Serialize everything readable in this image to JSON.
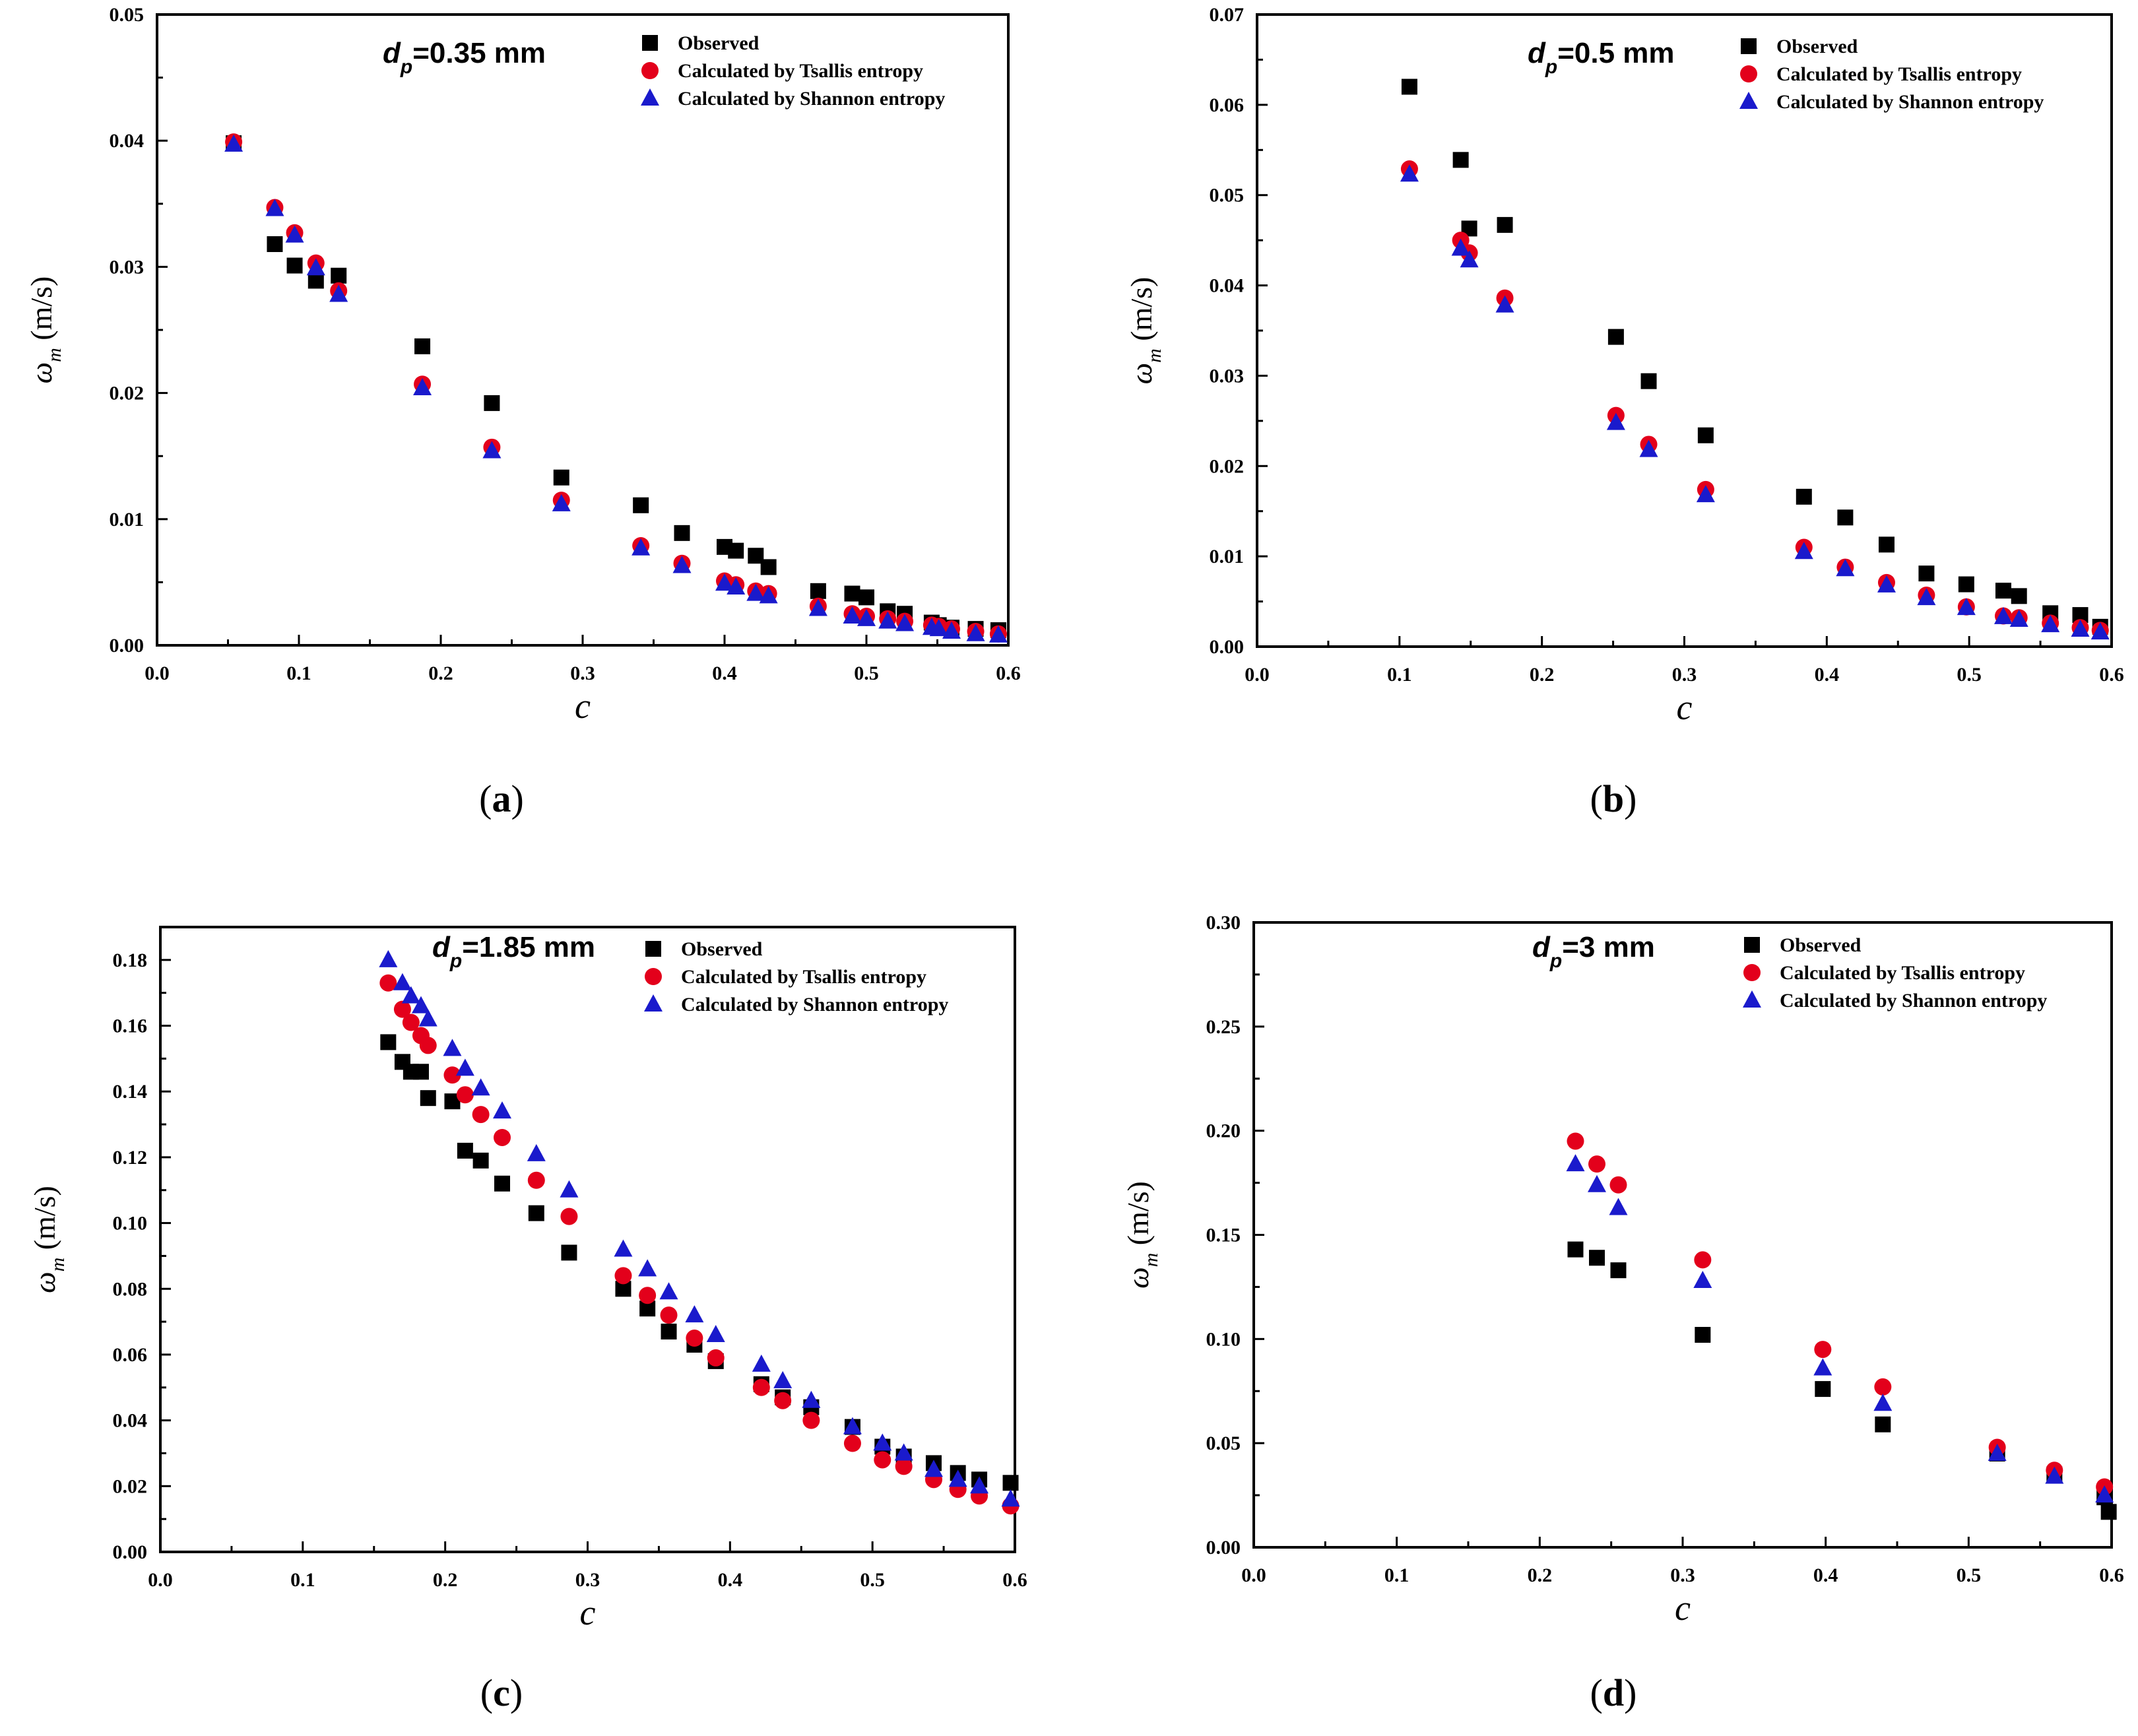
{
  "legend_labels": [
    "Observed",
    "Calculated by Tsallis entropy",
    "Calculated by  Shannon entropy"
  ],
  "series_colors": {
    "observed": "#000000",
    "tsallis": "#e3001b",
    "shannon": "#1a1acc"
  },
  "marker_shapes": {
    "observed": "square",
    "tsallis": "circle",
    "shannon": "triangle"
  },
  "chart_data": [
    {
      "type": "scatter",
      "panel_label": "a",
      "annotation": {
        "symbol": "d",
        "subscript": "p",
        "text": "=0.35 mm"
      },
      "xlabel": "c",
      "ylabel_symbol": "ω",
      "ylabel_subscript": "m",
      "ylabel_unit": "(m/s)",
      "xlim": [
        0,
        0.6
      ],
      "ylim": [
        0,
        0.05
      ],
      "xticks": [
        0.0,
        0.1,
        0.2,
        0.3,
        0.4,
        0.5,
        0.6
      ],
      "xtick_labels": [
        "0.0",
        "0.1",
        "0.2",
        "0.3",
        "0.4",
        "0.5",
        "0.6"
      ],
      "yticks": [
        0,
        0.01,
        0.02,
        0.03,
        0.04,
        0.05
      ],
      "ytick_labels": [
        "0.00",
        "0.01",
        "0.02",
        "0.03",
        "0.04",
        "0.05"
      ],
      "series": [
        {
          "name": "Observed",
          "key": "observed",
          "x": [
            0.054,
            0.083,
            0.097,
            0.112,
            0.128,
            0.187,
            0.236,
            0.285,
            0.341,
            0.37,
            0.4,
            0.408,
            0.422,
            0.431,
            0.466,
            0.49,
            0.5,
            0.515,
            0.527,
            0.546,
            0.551,
            0.56,
            0.577,
            0.593
          ],
          "y": [
            0.0398,
            0.0318,
            0.0301,
            0.0289,
            0.0293,
            0.0237,
            0.0192,
            0.0133,
            0.0111,
            0.0089,
            0.0078,
            0.0075,
            0.0071,
            0.0062,
            0.0043,
            0.0041,
            0.0038,
            0.0027,
            0.0025,
            0.0018,
            0.0016,
            0.0014,
            0.0013,
            0.0012
          ]
        },
        {
          "name": "Calculated by Tsallis entropy",
          "key": "tsallis",
          "x": [
            0.054,
            0.083,
            0.097,
            0.112,
            0.128,
            0.187,
            0.236,
            0.285,
            0.341,
            0.37,
            0.4,
            0.408,
            0.422,
            0.431,
            0.466,
            0.49,
            0.5,
            0.515,
            0.527,
            0.546,
            0.551,
            0.56,
            0.577,
            0.593
          ],
          "y": [
            0.0399,
            0.0347,
            0.0327,
            0.0303,
            0.0281,
            0.0207,
            0.0157,
            0.0115,
            0.0079,
            0.0065,
            0.0051,
            0.0048,
            0.0043,
            0.0041,
            0.0031,
            0.0025,
            0.0023,
            0.0021,
            0.0019,
            0.0016,
            0.0015,
            0.0013,
            0.0011,
            0.0009
          ]
        },
        {
          "name": "Calculated by  Shannon entropy",
          "key": "shannon",
          "x": [
            0.054,
            0.083,
            0.097,
            0.112,
            0.128,
            0.187,
            0.236,
            0.285,
            0.341,
            0.37,
            0.4,
            0.408,
            0.422,
            0.431,
            0.466,
            0.49,
            0.5,
            0.515,
            0.527,
            0.546,
            0.551,
            0.56,
            0.577,
            0.593
          ],
          "y": [
            0.0397,
            0.0346,
            0.0325,
            0.0299,
            0.0278,
            0.0204,
            0.0154,
            0.0112,
            0.0077,
            0.0063,
            0.0049,
            0.0046,
            0.0041,
            0.0039,
            0.0029,
            0.0023,
            0.0021,
            0.0019,
            0.0017,
            0.0014,
            0.0013,
            0.0011,
            0.0009,
            0.0008
          ]
        }
      ]
    },
    {
      "type": "scatter",
      "panel_label": "b",
      "annotation": {
        "symbol": "d",
        "subscript": "p",
        "text": "=0.5 mm"
      },
      "xlabel": "c",
      "ylabel_symbol": "ω",
      "ylabel_subscript": "m",
      "ylabel_unit": "(m/s)",
      "xlim": [
        0,
        0.6
      ],
      "ylim": [
        0,
        0.07
      ],
      "xticks": [
        0.0,
        0.1,
        0.2,
        0.3,
        0.4,
        0.5,
        0.6
      ],
      "xtick_labels": [
        "0.0",
        "0.1",
        "0.2",
        "0.3",
        "0.4",
        "0.5",
        "0.6"
      ],
      "yticks": [
        0,
        0.01,
        0.02,
        0.03,
        0.04,
        0.05,
        0.06,
        0.07
      ],
      "ytick_labels": [
        "0.00",
        "0.01",
        "0.02",
        "0.03",
        "0.04",
        "0.05",
        "0.06",
        "0.07"
      ],
      "series": [
        {
          "name": "Observed",
          "key": "observed",
          "x": [
            0.107,
            0.143,
            0.149,
            0.174,
            0.252,
            0.275,
            0.315,
            0.384,
            0.413,
            0.442,
            0.47,
            0.498,
            0.524,
            0.535,
            0.557,
            0.578,
            0.592
          ],
          "y": [
            0.062,
            0.0539,
            0.0463,
            0.0467,
            0.0343,
            0.0294,
            0.0234,
            0.0166,
            0.0143,
            0.0113,
            0.0081,
            0.0069,
            0.0062,
            0.0056,
            0.0037,
            0.0035,
            0.0022
          ]
        },
        {
          "name": "Calculated by Tsallis entropy",
          "key": "tsallis",
          "x": [
            0.107,
            0.143,
            0.149,
            0.174,
            0.252,
            0.275,
            0.315,
            0.384,
            0.413,
            0.442,
            0.47,
            0.498,
            0.524,
            0.535,
            0.557,
            0.578,
            0.592
          ],
          "y": [
            0.0529,
            0.045,
            0.0436,
            0.0386,
            0.0256,
            0.0224,
            0.0174,
            0.011,
            0.0088,
            0.0071,
            0.0057,
            0.0044,
            0.0034,
            0.0032,
            0.0026,
            0.0021,
            0.0018
          ]
        },
        {
          "name": "Calculated by  Shannon entropy",
          "key": "shannon",
          "x": [
            0.107,
            0.143,
            0.149,
            0.174,
            0.252,
            0.275,
            0.315,
            0.384,
            0.413,
            0.442,
            0.47,
            0.498,
            0.524,
            0.535,
            0.557,
            0.578,
            0.592
          ],
          "y": [
            0.0523,
            0.0441,
            0.0428,
            0.0378,
            0.0248,
            0.0218,
            0.0168,
            0.0105,
            0.0086,
            0.0068,
            0.0054,
            0.0043,
            0.0033,
            0.003,
            0.0024,
            0.0019,
            0.0016
          ]
        }
      ]
    },
    {
      "type": "scatter",
      "panel_label": "c",
      "annotation": {
        "symbol": "d",
        "subscript": "p",
        "text": "=1.85 mm"
      },
      "xlabel": "c",
      "ylabel_symbol": "ω",
      "ylabel_subscript": "m",
      "ylabel_unit": "(m/s)",
      "xlim": [
        0,
        0.6
      ],
      "ylim": [
        0,
        0.19
      ],
      "xticks": [
        0.0,
        0.1,
        0.2,
        0.3,
        0.4,
        0.5,
        0.6
      ],
      "xtick_labels": [
        "0.0",
        "0.1",
        "0.2",
        "0.3",
        "0.4",
        "0.5",
        "0.6"
      ],
      "yticks": [
        0,
        0.02,
        0.04,
        0.06,
        0.08,
        0.1,
        0.12,
        0.14,
        0.16,
        0.18
      ],
      "ytick_labels": [
        "0.00",
        "0.02",
        "0.04",
        "0.06",
        "0.08",
        "0.10",
        "0.12",
        "0.14",
        "0.16",
        "0.18"
      ],
      "series": [
        {
          "name": "Observed",
          "key": "observed",
          "x": [
            0.16,
            0.17,
            0.176,
            0.183,
            0.188,
            0.205,
            0.214,
            0.225,
            0.24,
            0.264,
            0.287,
            0.325,
            0.342,
            0.357,
            0.375,
            0.39,
            0.422,
            0.437,
            0.457,
            0.486,
            0.507,
            0.522,
            0.543,
            0.56,
            0.575,
            0.597
          ],
          "y": [
            0.155,
            0.149,
            0.146,
            0.146,
            0.138,
            0.137,
            0.122,
            0.119,
            0.112,
            0.103,
            0.091,
            0.08,
            0.074,
            0.067,
            0.063,
            0.058,
            0.051,
            0.047,
            0.044,
            0.038,
            0.032,
            0.029,
            0.027,
            0.024,
            0.022,
            0.021
          ]
        },
        {
          "name": "Calculated by Tsallis entropy",
          "key": "tsallis",
          "x": [
            0.16,
            0.17,
            0.176,
            0.183,
            0.188,
            0.205,
            0.214,
            0.225,
            0.24,
            0.264,
            0.287,
            0.325,
            0.342,
            0.357,
            0.375,
            0.39,
            0.422,
            0.437,
            0.457,
            0.486,
            0.507,
            0.522,
            0.543,
            0.56,
            0.575,
            0.597
          ],
          "y": [
            0.173,
            0.165,
            0.161,
            0.157,
            0.154,
            0.145,
            0.139,
            0.133,
            0.126,
            0.113,
            0.102,
            0.084,
            0.078,
            0.072,
            0.065,
            0.059,
            0.05,
            0.046,
            0.04,
            0.033,
            0.028,
            0.026,
            0.022,
            0.019,
            0.017,
            0.014
          ]
        },
        {
          "name": "Calculated by  Shannon entropy",
          "key": "shannon",
          "x": [
            0.16,
            0.17,
            0.176,
            0.183,
            0.188,
            0.205,
            0.214,
            0.225,
            0.24,
            0.264,
            0.287,
            0.325,
            0.342,
            0.357,
            0.375,
            0.39,
            0.422,
            0.437,
            0.457,
            0.486,
            0.507,
            0.522,
            0.543,
            0.56,
            0.575,
            0.597
          ],
          "y": [
            0.18,
            0.173,
            0.169,
            0.166,
            0.162,
            0.153,
            0.147,
            0.141,
            0.134,
            0.121,
            0.11,
            0.092,
            0.086,
            0.079,
            0.072,
            0.066,
            0.057,
            0.052,
            0.046,
            0.038,
            0.033,
            0.03,
            0.025,
            0.022,
            0.02,
            0.016
          ]
        }
      ]
    },
    {
      "type": "scatter",
      "panel_label": "d",
      "annotation": {
        "symbol": "d",
        "subscript": "p",
        "text": "=3 mm"
      },
      "xlabel": "c",
      "ylabel_symbol": "ω",
      "ylabel_subscript": "m",
      "ylabel_unit": "(m/s)",
      "xlim": [
        0,
        0.6
      ],
      "ylim": [
        0,
        0.3
      ],
      "xticks": [
        0.0,
        0.1,
        0.2,
        0.3,
        0.4,
        0.5,
        0.6
      ],
      "xtick_labels": [
        "0.0",
        "0.1",
        "0.2",
        "0.3",
        "0.4",
        "0.5",
        "0.6"
      ],
      "yticks": [
        0,
        0.05,
        0.1,
        0.15,
        0.2,
        0.25,
        0.3
      ],
      "ytick_labels": [
        "0.00",
        "0.05",
        "0.10",
        "0.15",
        "0.20",
        "0.25",
        "0.30"
      ],
      "series": [
        {
          "name": "Observed",
          "key": "observed",
          "x": [
            0.225,
            0.24,
            0.255,
            0.314,
            0.398,
            0.44,
            0.52,
            0.56,
            0.595,
            0.598
          ],
          "y": [
            0.143,
            0.139,
            0.133,
            0.102,
            0.076,
            0.059,
            0.045,
            0.035,
            0.024,
            0.017
          ]
        },
        {
          "name": "Calculated by Tsallis entropy",
          "key": "tsallis",
          "x": [
            0.225,
            0.24,
            0.255,
            0.314,
            0.398,
            0.44,
            0.52,
            0.56,
            0.595
          ],
          "y": [
            0.195,
            0.184,
            0.174,
            0.138,
            0.095,
            0.077,
            0.048,
            0.037,
            0.029
          ]
        },
        {
          "name": "Calculated by  Shannon entropy",
          "key": "shannon",
          "x": [
            0.225,
            0.24,
            0.255,
            0.314,
            0.398,
            0.44,
            0.52,
            0.56,
            0.595
          ],
          "y": [
            0.184,
            0.174,
            0.163,
            0.128,
            0.086,
            0.069,
            0.045,
            0.034,
            0.025
          ]
        }
      ]
    }
  ]
}
